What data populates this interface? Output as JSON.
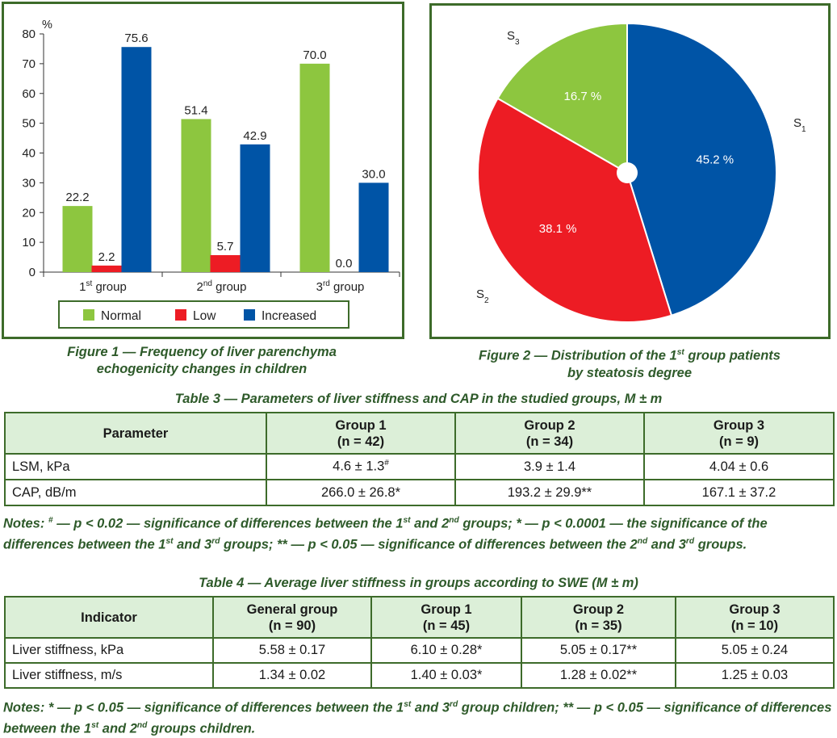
{
  "figure1": {
    "caption_line1": "Figure 1 — Frequency of liver parenchyma",
    "caption_line2": "echogenicity changes in children",
    "chart_data": {
      "type": "bar",
      "ylabel": "%",
      "ylim": [
        0,
        80
      ],
      "yticks": [
        0,
        10,
        20,
        30,
        40,
        50,
        60,
        70,
        80
      ],
      "categories": [
        {
          "base": "1",
          "sup": "st",
          "rest": " group"
        },
        {
          "base": "2",
          "sup": "nd",
          "rest": " group"
        },
        {
          "base": "3",
          "sup": "rd",
          "rest": " group"
        }
      ],
      "series": [
        {
          "name": "Normal",
          "color": "#8dc63f",
          "values": [
            22.2,
            51.4,
            70.0
          ]
        },
        {
          "name": "Low",
          "color": "#ed1c24",
          "values": [
            2.2,
            5.7,
            0.0
          ]
        },
        {
          "name": "Increased",
          "color": "#0054a6",
          "values": [
            75.6,
            42.9,
            30.0
          ]
        }
      ],
      "legend_position": "bottom",
      "grid": false
    }
  },
  "figure2": {
    "caption_line1": "Figure 2 — Distribution of the 1st group patients",
    "caption_line2": "by steatosis degree",
    "chart_data": {
      "type": "pie",
      "slices": [
        {
          "name": "S1",
          "base": "S",
          "sub": "1",
          "value": 45.2,
          "label": "45.2 %",
          "color": "#0054a6"
        },
        {
          "name": "S2",
          "base": "S",
          "sub": "2",
          "value": 38.1,
          "label": "38.1 %",
          "color": "#ed1c24"
        },
        {
          "name": "S3",
          "base": "S",
          "sub": "3",
          "value": 16.7,
          "label": "16.7 %",
          "color": "#8dc63f"
        }
      ]
    }
  },
  "table3": {
    "caption": "Table 3 — Parameters of liver stiffness and CAP in the studied groups, M ± m",
    "headers": [
      {
        "l1": "Parameter",
        "l2": ""
      },
      {
        "l1": "Group 1",
        "l2": "(n = 42)"
      },
      {
        "l1": "Group 2",
        "l2": "(n = 34)"
      },
      {
        "l1": "Group 3",
        "l2": "(n = 9)"
      }
    ],
    "rows": [
      [
        "LSM, kPa",
        "4.6 ± 1.3",
        "3.9 ± 1.4",
        "4.04 ± 0.6"
      ],
      [
        "CAP, dB/m",
        "266.0 ± 26.8*",
        "193.2 ± 29.9**",
        "167.1 ± 37.2"
      ]
    ],
    "lsm_mark": "#",
    "notes": "Notes: # — p < 0.02 — significance of differences between the 1st and 2nd groups; * — p < 0.0001 — the significance of the differences between the 1st and 3rd groups; ** — p < 0.05 — significance of differences between the 2nd and 3rd groups."
  },
  "table4": {
    "caption": "Table 4 — Average liver stiffness in groups according to SWE (M ± m)",
    "headers": [
      {
        "l1": "Indicator",
        "l2": ""
      },
      {
        "l1": "General group",
        "l2": "(n = 90)"
      },
      {
        "l1": "Group 1",
        "l2": "(n = 45)"
      },
      {
        "l1": "Group 2",
        "l2": "(n = 35)"
      },
      {
        "l1": "Group 3",
        "l2": "(n = 10)"
      }
    ],
    "rows": [
      [
        "Liver stiffness, kPa",
        "5.58 ± 0.17",
        "6.10 ± 0.28*",
        "5.05 ± 0.17**",
        "5.05 ± 0.24"
      ],
      [
        "Liver stiffness, m/s",
        "1.34 ± 0.02",
        "1.40 ± 0.03*",
        "1.28 ± 0.02**",
        "1.25 ± 0.03"
      ]
    ],
    "notes": "Notes: * — p < 0.05 — significance of differences between the 1st and 3rd group children; ** — p < 0.05 — significance of differences between the 1st and 2nd groups children."
  }
}
